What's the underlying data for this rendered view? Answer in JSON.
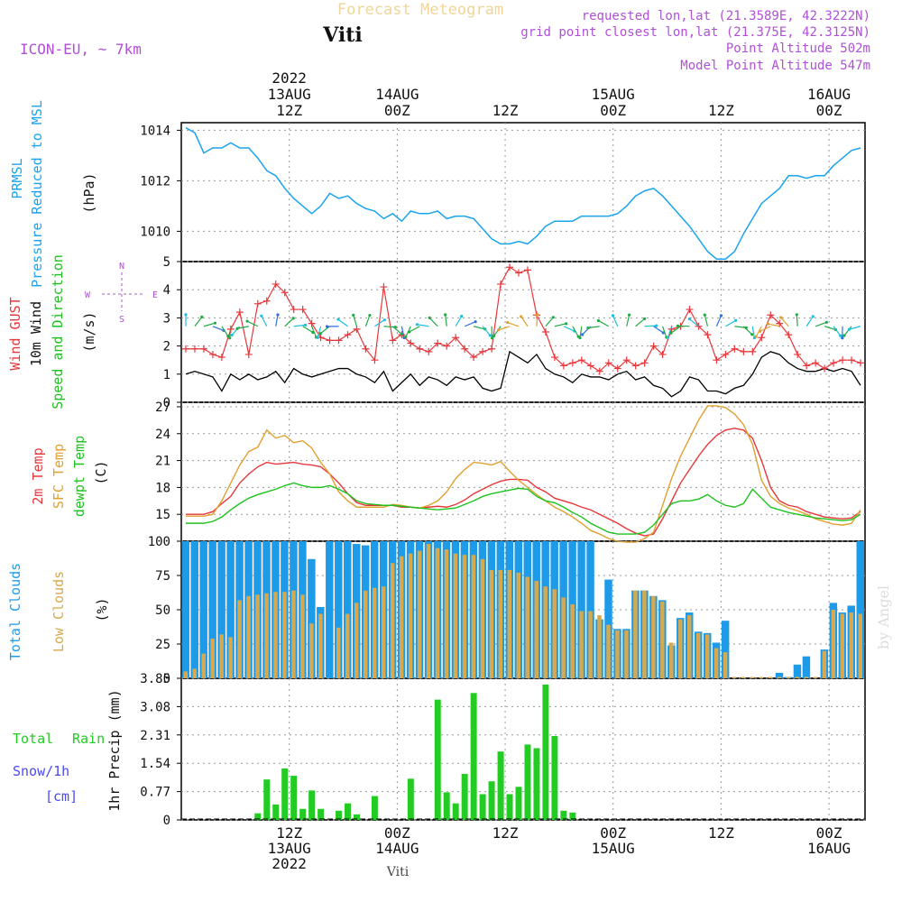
{
  "header": {
    "product": "Forecast Meteogram",
    "location": "Viti",
    "model": "ICON-EU, ~ 7km",
    "requested": "requested lon,lat (21.3589E, 42.3222N)",
    "grid_point": "grid point closest lon,lat (21.375E, 42.3125N)",
    "point_altitude": "Point Altitude 502m",
    "model_altitude": "Model Point Altitude 547m",
    "watermark": "by Angel",
    "footer_location": "Viti"
  },
  "colors": {
    "pressure": "#1aa3ee",
    "gust": "#e8373b",
    "wind": "#000000",
    "temp2m": "#e8373b",
    "sfc_temp": "#e0a030",
    "dewpt": "#1ec21e",
    "total_clouds": "#1e9be8",
    "low_clouds": "#d7a94e",
    "rain": "#22cc22",
    "snow": "#4a4af0",
    "meta_purple": "#b050d8"
  },
  "time_axis": {
    "top_labels": [
      {
        "lines": [
          "2022",
          "13AUG",
          "12Z"
        ],
        "hour": 12
      },
      {
        "lines": [
          "14AUG",
          "00Z"
        ],
        "hour": 24
      },
      {
        "lines": [
          "12Z"
        ],
        "hour": 36
      },
      {
        "lines": [
          "15AUG",
          "00Z"
        ],
        "hour": 48
      },
      {
        "lines": [
          "12Z"
        ],
        "hour": 60
      },
      {
        "lines": [
          "16AUG",
          "00Z"
        ],
        "hour": 72
      }
    ],
    "bottom_labels": [
      {
        "lines": [
          "12Z",
          "13AUG",
          "2022"
        ],
        "hour": 12
      },
      {
        "lines": [
          "00Z",
          "14AUG"
        ],
        "hour": 24
      },
      {
        "lines": [
          "12Z"
        ],
        "hour": 36
      },
      {
        "lines": [
          "00Z",
          "15AUG"
        ],
        "hour": 48
      },
      {
        "lines": [
          "12Z"
        ],
        "hour": 60
      },
      {
        "lines": [
          "00Z",
          "16AUG"
        ],
        "hour": 72
      }
    ]
  },
  "panels": {
    "pressure": {
      "label1": "PRMSL",
      "label2": "Pressure Reduced to MSL",
      "unit": "(hPa)",
      "ticks": [
        "1010",
        "1012",
        "1014"
      ]
    },
    "wind": {
      "label_gust": "Wind GUST",
      "label_wind": "10m Wind",
      "label_dir": "Speed and Direction",
      "unit": "(m/s)",
      "ticks": [
        "0",
        "1",
        "2",
        "3",
        "4",
        "5"
      ],
      "compass": {
        "n": "N",
        "s": "S",
        "w": "W",
        "e": "E"
      }
    },
    "temp": {
      "label1": "2m Temp",
      "label2": "SFC Temp",
      "label3": "dewpt Temp",
      "unit": "(C)",
      "ticks": [
        "15",
        "18",
        "21",
        "24",
        "27"
      ]
    },
    "clouds": {
      "label1": "Total Clouds",
      "label2": "Low Clouds",
      "unit": "(%)",
      "ticks": [
        "0",
        "25",
        "50",
        "75",
        "100"
      ]
    },
    "precip": {
      "label_total": "Total",
      "label_rain": "Rain",
      "label_snow": "Snow/1h",
      "label_cm": "[cm]",
      "unit": "1hr Precip (mm)",
      "ticks": [
        "0",
        "0.77",
        "1.54",
        "2.31",
        "3.08",
        "3.85"
      ]
    }
  },
  "chart_data": [
    {
      "type": "line",
      "title": "PRMSL Pressure Reduced to MSL",
      "ylabel": "hPa",
      "x_unit": "hours since 13AUG 00Z",
      "ylim": [
        1008.8,
        1014.3
      ],
      "x": [
        0,
        1,
        2,
        3,
        4,
        5,
        6,
        7,
        8,
        9,
        10,
        11,
        12,
        13,
        14,
        15,
        16,
        17,
        18,
        19,
        20,
        21,
        22,
        23,
        24,
        25,
        26,
        27,
        28,
        29,
        30,
        31,
        32,
        33,
        34,
        35,
        36,
        37,
        38,
        39,
        40,
        41,
        42,
        43,
        44,
        45,
        46,
        47,
        48,
        49,
        50,
        51,
        52,
        53,
        54,
        55,
        56,
        57,
        58,
        59,
        60,
        61,
        62,
        63,
        64,
        65,
        66,
        67,
        68,
        69,
        70,
        71,
        72,
        73,
        74,
        75
      ],
      "values": [
        1014.1,
        1013.9,
        1013.1,
        1013.3,
        1013.3,
        1013.5,
        1013.3,
        1013.3,
        1012.9,
        1012.4,
        1012.2,
        1011.7,
        1011.3,
        1011.0,
        1010.7,
        1011.0,
        1011.5,
        1011.3,
        1011.4,
        1011.1,
        1010.9,
        1010.8,
        1010.5,
        1010.7,
        1010.4,
        1010.8,
        1010.7,
        1010.7,
        1010.8,
        1010.5,
        1010.6,
        1010.6,
        1010.5,
        1010.1,
        1009.7,
        1009.5,
        1009.5,
        1009.6,
        1009.5,
        1009.8,
        1010.2,
        1010.4,
        1010.4,
        1010.4,
        1010.6,
        1010.6,
        1010.6,
        1010.6,
        1010.7,
        1011.0,
        1011.4,
        1011.6,
        1011.7,
        1011.4,
        1011.0,
        1010.6,
        1010.2,
        1009.7,
        1009.2,
        1008.9,
        1008.9,
        1009.2,
        1009.9,
        1010.5,
        1011.1,
        1011.4,
        1011.7,
        1012.2,
        1012.2,
        1012.1,
        1012.2,
        1012.2,
        1012.6,
        1012.9,
        1013.2,
        1013.3
      ]
    },
    {
      "type": "line",
      "title": "Wind GUST / 10m Wind Speed and Direction",
      "ylabel": "m/s",
      "ylim": [
        0,
        5
      ],
      "series": [
        {
          "name": "Wind GUST",
          "values": [
            1.9,
            1.9,
            1.9,
            1.7,
            1.6,
            2.6,
            3.2,
            1.7,
            3.5,
            3.6,
            4.2,
            3.9,
            3.3,
            3.3,
            2.8,
            2.3,
            2.2,
            2.2,
            2.4,
            2.6,
            1.9,
            1.5,
            4.1,
            2.2,
            2.4,
            2.1,
            1.9,
            1.8,
            2.1,
            2.0,
            2.3,
            1.9,
            1.6,
            1.8,
            1.9,
            4.2,
            4.8,
            4.6,
            4.7,
            3.1,
            2.5,
            1.6,
            1.3,
            1.4,
            1.5,
            1.3,
            1.1,
            1.4,
            1.2,
            1.5,
            1.3,
            1.4,
            2.0,
            1.7,
            2.6,
            2.7,
            3.3,
            2.7,
            2.4,
            1.5,
            1.7,
            1.9,
            1.8,
            1.8,
            2.3,
            3.1,
            2.8,
            2.4,
            1.7,
            1.3,
            1.4,
            1.2,
            1.4,
            1.5,
            1.5,
            1.4
          ]
        },
        {
          "name": "10m Wind",
          "values": [
            1.0,
            1.1,
            1.0,
            0.9,
            0.4,
            1.0,
            0.8,
            1.0,
            0.8,
            0.9,
            1.1,
            0.7,
            1.2,
            1.0,
            0.9,
            1.0,
            1.1,
            1.2,
            1.2,
            1.0,
            0.9,
            0.7,
            1.1,
            0.4,
            0.7,
            1.0,
            0.6,
            0.9,
            0.8,
            0.6,
            0.9,
            0.8,
            0.9,
            0.5,
            0.4,
            0.5,
            1.8,
            1.6,
            1.4,
            1.7,
            1.2,
            1.0,
            0.9,
            0.7,
            1.0,
            0.9,
            0.9,
            0.8,
            1.0,
            1.1,
            0.8,
            0.9,
            0.6,
            0.5,
            0.2,
            0.4,
            0.9,
            0.8,
            0.4,
            0.4,
            0.3,
            0.5,
            0.6,
            1.0,
            1.6,
            1.8,
            1.7,
            1.4,
            1.2,
            1.1,
            1.1,
            1.2,
            1.1,
            1.2,
            1.1,
            0.6
          ]
        }
      ]
    },
    {
      "type": "line",
      "title": "2m Temp / SFC Temp / dewpt Temp",
      "ylabel": "C",
      "ylim": [
        12,
        27.5
      ],
      "series": [
        {
          "name": "2m Temp",
          "values": [
            15.0,
            15.0,
            15.0,
            15.3,
            16.2,
            17.0,
            18.5,
            19.5,
            20.3,
            20.8,
            20.6,
            20.7,
            20.8,
            20.6,
            20.5,
            20.3,
            19.5,
            18.5,
            17.3,
            16.3,
            16.0,
            16.0,
            16.0,
            16.0,
            15.8,
            15.8,
            15.7,
            15.8,
            15.9,
            15.8,
            16.1,
            16.6,
            17.3,
            17.8,
            18.3,
            18.7,
            18.9,
            18.9,
            18.8,
            18.0,
            17.5,
            16.8,
            16.5,
            16.2,
            15.8,
            15.5,
            15.0,
            14.5,
            14.0,
            13.4,
            12.9,
            12.6,
            12.8,
            14.5,
            16.5,
            18.5,
            20.0,
            21.5,
            22.8,
            23.8,
            24.4,
            24.6,
            24.4,
            23.5,
            21.0,
            18.0,
            16.5,
            16.0,
            15.8,
            15.3,
            15.0,
            14.7,
            14.6,
            14.5,
            14.6,
            15.3
          ]
        },
        {
          "name": "SFC Temp",
          "values": [
            14.8,
            14.8,
            14.8,
            15.0,
            16.5,
            18.5,
            20.5,
            22.0,
            22.5,
            24.4,
            23.5,
            23.8,
            23.0,
            23.2,
            22.4,
            20.8,
            19.5,
            17.5,
            16.5,
            15.8,
            15.8,
            15.8,
            15.8,
            16.1,
            16.0,
            15.8,
            15.7,
            16.0,
            16.5,
            17.5,
            19.0,
            20.0,
            20.8,
            20.7,
            20.5,
            20.9,
            19.8,
            18.8,
            18.0,
            17.2,
            16.5,
            15.8,
            15.3,
            14.7,
            14.0,
            13.2,
            12.8,
            12.3,
            12.0,
            11.9,
            11.9,
            12.3,
            13.0,
            16.0,
            19.0,
            21.5,
            23.5,
            25.5,
            27.1,
            27.1,
            26.9,
            26.2,
            25.0,
            22.8,
            18.8,
            17.0,
            16.2,
            15.7,
            15.4,
            15.0,
            14.5,
            14.2,
            13.9,
            13.8,
            14.0,
            15.5
          ]
        },
        {
          "name": "dewpt Temp",
          "values": [
            14.0,
            14.0,
            14.0,
            14.2,
            14.7,
            15.5,
            16.2,
            16.8,
            17.2,
            17.5,
            17.8,
            18.2,
            18.5,
            18.2,
            18.0,
            18.0,
            18.2,
            17.8,
            17.3,
            16.5,
            16.2,
            16.1,
            16.0,
            16.0,
            15.9,
            15.8,
            15.7,
            15.6,
            15.5,
            15.6,
            15.7,
            16.1,
            16.5,
            17.0,
            17.3,
            17.5,
            17.7,
            17.9,
            17.8,
            17.0,
            16.5,
            16.3,
            15.8,
            15.2,
            14.7,
            14.0,
            13.5,
            13.0,
            12.8,
            12.8,
            12.8,
            13.0,
            13.8,
            15.0,
            16.2,
            16.5,
            16.5,
            16.7,
            17.2,
            16.5,
            16.0,
            15.8,
            16.2,
            17.8,
            16.8,
            15.8,
            15.5,
            15.2,
            15.0,
            14.8,
            14.6,
            14.5,
            14.4,
            14.3,
            14.4,
            15.0
          ]
        }
      ],
      "wind_direction_arrows": "shown on wind panel, color-coded by speed"
    },
    {
      "type": "bar",
      "title": "Total Clouds / Low Clouds",
      "ylabel": "%",
      "ylim": [
        0,
        100
      ],
      "series": [
        {
          "name": "Total Clouds",
          "values": [
            100,
            100,
            100,
            100,
            100,
            100,
            100,
            100,
            100,
            100,
            100,
            100,
            100,
            100,
            87,
            52,
            100,
            100,
            100,
            98,
            97,
            100,
            100,
            100,
            100,
            100,
            100,
            100,
            100,
            100,
            100,
            100,
            100,
            100,
            100,
            100,
            100,
            100,
            100,
            100,
            100,
            100,
            100,
            100,
            100,
            100,
            43,
            72,
            36,
            36,
            64,
            64,
            60,
            57,
            24,
            44,
            48,
            34,
            33,
            26,
            42,
            0,
            0,
            0,
            0,
            0,
            4,
            1,
            10,
            16,
            0,
            21,
            55,
            48,
            53,
            100,
            100,
            100
          ]
        },
        {
          "name": "Low Clouds",
          "values": [
            5,
            7,
            18,
            29,
            32,
            30,
            57,
            60,
            61,
            62,
            63,
            63,
            64,
            61,
            40,
            47,
            0,
            37,
            47,
            55,
            64,
            66,
            67,
            84,
            89,
            91,
            93,
            98,
            95,
            94,
            91,
            90,
            90,
            87,
            79,
            79,
            79,
            77,
            74,
            71,
            67,
            65,
            59,
            54,
            49,
            49,
            46,
            39,
            35,
            35,
            64,
            64,
            60,
            56,
            26,
            43,
            46,
            33,
            32,
            22,
            19,
            1,
            1,
            1,
            1,
            1,
            1,
            1,
            1,
            1,
            1,
            20,
            50,
            47,
            48,
            47,
            47,
            46
          ]
        }
      ]
    },
    {
      "type": "bar",
      "title": "Total Rain / Snow 1h",
      "ylabel": "1hr Precip (mm)",
      "ylim": [
        0,
        3.85
      ],
      "values": [
        0,
        0,
        0,
        0,
        0,
        0,
        0,
        0,
        0.18,
        1.1,
        0.42,
        1.4,
        1.2,
        0.3,
        0.8,
        0.3,
        0,
        0.25,
        0.45,
        0.15,
        0,
        0.65,
        0,
        0,
        0,
        1.12,
        0,
        0,
        3.27,
        0.75,
        0.45,
        1.25,
        3.45,
        0.7,
        1.05,
        1.86,
        0.7,
        0.9,
        2.05,
        1.95,
        3.68,
        2.28,
        0.25,
        0.2,
        0,
        0,
        0,
        0,
        0,
        0,
        0,
        0,
        0,
        0,
        0,
        0,
        0,
        0,
        0,
        0,
        0,
        0,
        0,
        0,
        0,
        0,
        0,
        0,
        0,
        0,
        0,
        0,
        0,
        0,
        0,
        0,
        0,
        0
      ],
      "snow": "none"
    }
  ]
}
